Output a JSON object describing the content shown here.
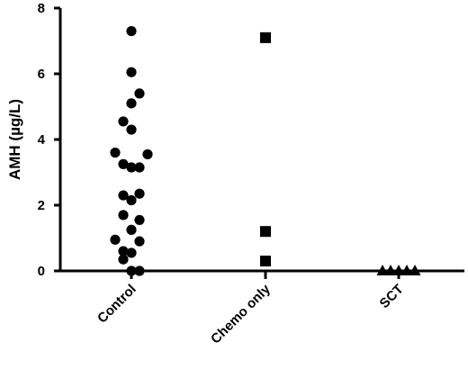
{
  "chart_data": {
    "type": "scatter",
    "title": "",
    "xlabel": "",
    "ylabel": "AMH (µg/L)",
    "ylim": [
      0,
      8
    ],
    "yticks": [
      "0",
      "2",
      "4",
      "6",
      "8"
    ],
    "grid": false,
    "categories": [
      "Control",
      "Chemo only",
      "SCT"
    ],
    "series": [
      {
        "category": "Control",
        "marker": "circle",
        "points": [
          {
            "x": 0.0,
            "y": 7.3
          },
          {
            "x": 0.0,
            "y": 6.05
          },
          {
            "x": 0.0,
            "y": 5.1
          },
          {
            "x": 0.5,
            "y": 5.4
          },
          {
            "x": -0.5,
            "y": 4.55
          },
          {
            "x": 0.0,
            "y": 4.3
          },
          {
            "x": -1.0,
            "y": 3.6
          },
          {
            "x": 1.0,
            "y": 3.55
          },
          {
            "x": -0.5,
            "y": 3.25
          },
          {
            "x": 0.0,
            "y": 3.15
          },
          {
            "x": 0.5,
            "y": 3.15
          },
          {
            "x": -0.5,
            "y": 2.3
          },
          {
            "x": 0.5,
            "y": 2.35
          },
          {
            "x": 0.0,
            "y": 2.15
          },
          {
            "x": -0.5,
            "y": 1.7
          },
          {
            "x": 0.5,
            "y": 1.55
          },
          {
            "x": 0.0,
            "y": 1.25
          },
          {
            "x": -1.0,
            "y": 0.95
          },
          {
            "x": 0.5,
            "y": 0.9
          },
          {
            "x": -0.5,
            "y": 0.6
          },
          {
            "x": 0.0,
            "y": 0.55
          },
          {
            "x": -0.5,
            "y": 0.35
          },
          {
            "x": 0.0,
            "y": 0.0
          },
          {
            "x": 0.5,
            "y": 0.0
          }
        ]
      },
      {
        "category": "Chemo only",
        "marker": "square",
        "points": [
          {
            "x": 0.0,
            "y": 7.1
          },
          {
            "x": 0.0,
            "y": 1.2
          },
          {
            "x": 0.0,
            "y": 0.3
          }
        ]
      },
      {
        "category": "SCT",
        "marker": "triangle",
        "points": [
          {
            "x": -1.0,
            "y": 0.0
          },
          {
            "x": -0.5,
            "y": 0.0
          },
          {
            "x": 0.0,
            "y": 0.0
          },
          {
            "x": 0.5,
            "y": 0.0
          },
          {
            "x": 1.0,
            "y": 0.0
          }
        ]
      }
    ]
  }
}
